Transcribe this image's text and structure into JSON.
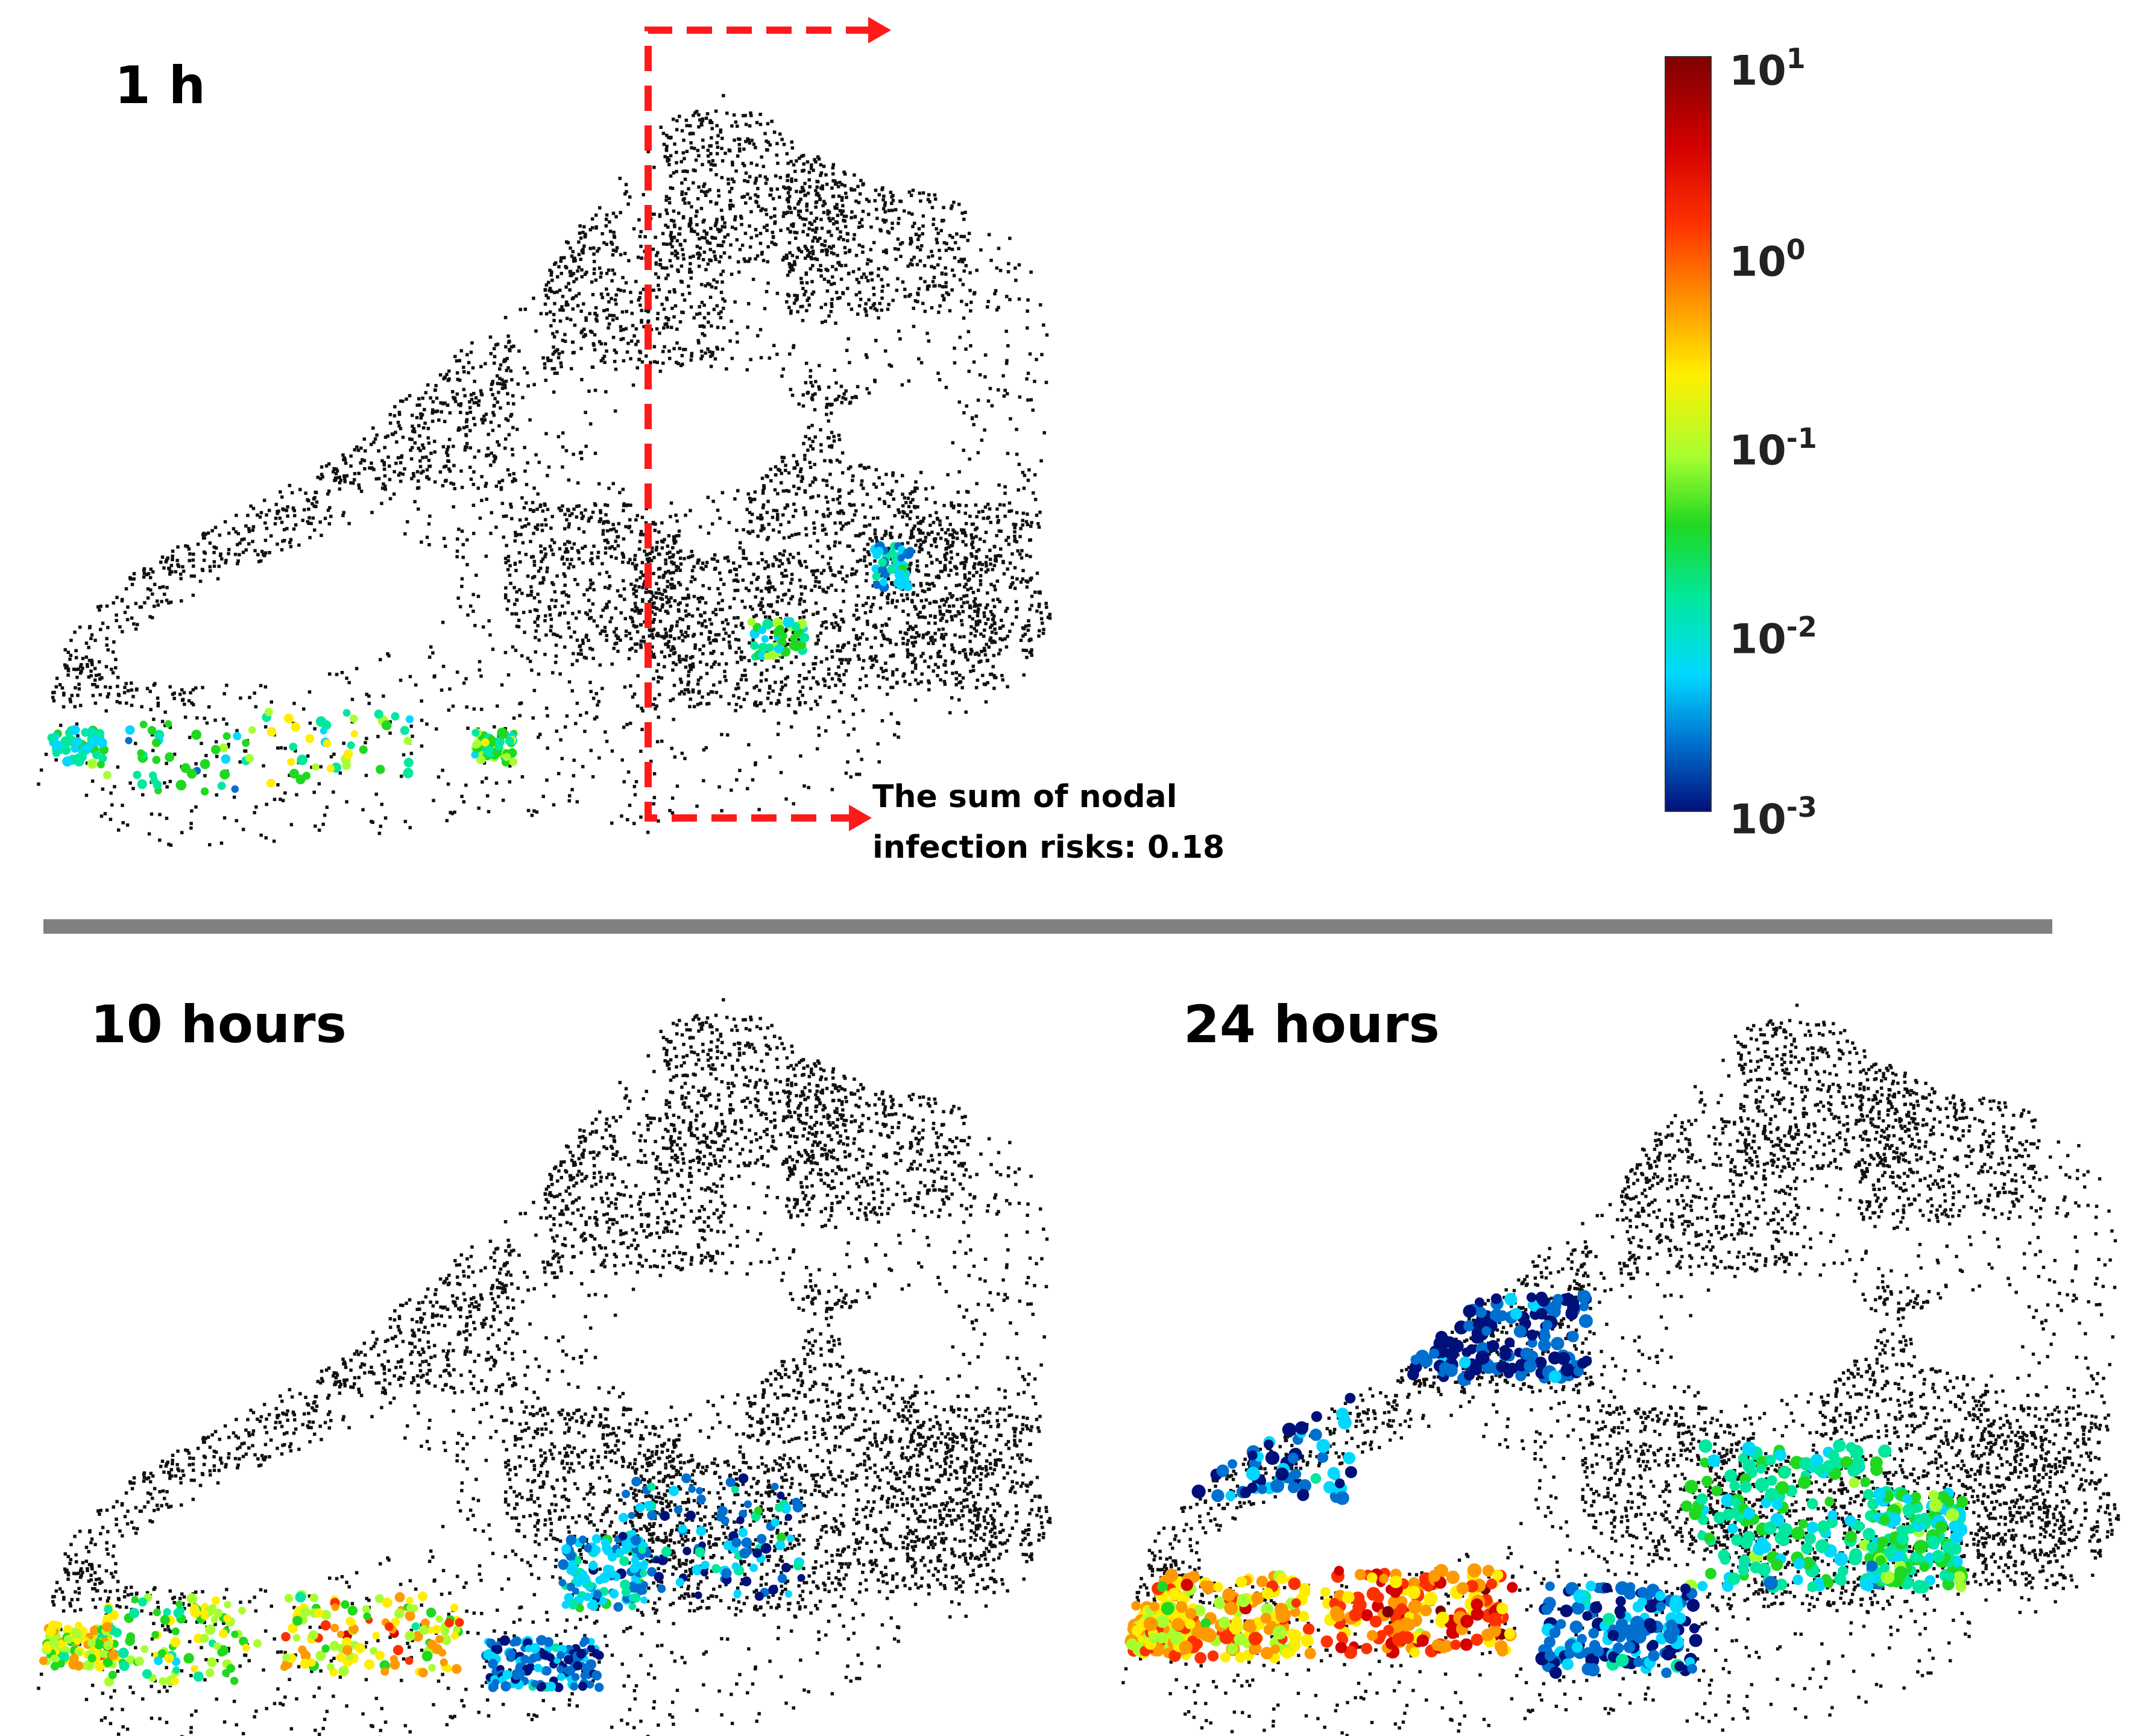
{
  "panels": [
    {
      "id": "p1",
      "title": "1 h"
    },
    {
      "id": "p2",
      "title": "10 hours"
    },
    {
      "id": "p3",
      "title": "24 hours"
    }
  ],
  "annotation": {
    "line1": "The sum of nodal",
    "line2": "infection risks: 0.18",
    "arrow_color": "#ff1a1a"
  },
  "colorbar": {
    "scale": "log",
    "ticks": [
      {
        "base": "10",
        "exp": "1"
      },
      {
        "base": "10",
        "exp": "0"
      },
      {
        "base": "10",
        "exp": "-1"
      },
      {
        "base": "10",
        "exp": "-2"
      },
      {
        "base": "10",
        "exp": "-3"
      }
    ],
    "colormap": [
      "#00107a",
      "#0070d0",
      "#00d8ff",
      "#00e8a0",
      "#20d820",
      "#a8ff30",
      "#ffee00",
      "#ff9900",
      "#ff3000",
      "#d40000",
      "#7f0000"
    ]
  },
  "colors": {
    "network_nodes": "#111111",
    "divider": "#808080"
  }
}
